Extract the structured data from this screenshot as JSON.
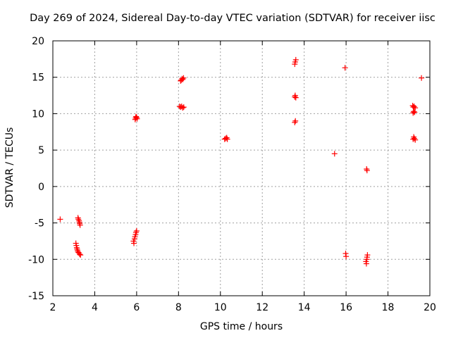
{
  "chart_data": {
    "type": "scatter",
    "title": "Day 269 of 2024, Sidereal Day-to-day VTEC variation (SDTVAR) for receiver iisc",
    "xlabel": "GPS time / hours",
    "ylabel": "SDTVAR / TECUs",
    "xlim": [
      2,
      20
    ],
    "ylim": [
      -15,
      20
    ],
    "xticks": [
      2,
      4,
      6,
      8,
      10,
      12,
      14,
      16,
      18,
      20
    ],
    "yticks": [
      -15,
      -10,
      -5,
      0,
      5,
      10,
      15,
      20
    ],
    "grid": true,
    "marker": "plus",
    "series": [
      {
        "name": "SDTVAR",
        "color": "#ff0000",
        "points": [
          [
            2.35,
            -4.5
          ],
          [
            3.2,
            -4.3
          ],
          [
            3.22,
            -4.5
          ],
          [
            3.25,
            -4.7
          ],
          [
            3.27,
            -4.9
          ],
          [
            3.28,
            -5.1
          ],
          [
            3.3,
            -5.3
          ],
          [
            3.1,
            -7.8
          ],
          [
            3.12,
            -8.1
          ],
          [
            3.14,
            -8.4
          ],
          [
            3.16,
            -8.6
          ],
          [
            3.18,
            -8.8
          ],
          [
            3.2,
            -9.0
          ],
          [
            3.24,
            -9.1
          ],
          [
            3.28,
            -9.3
          ],
          [
            3.32,
            -9.4
          ],
          [
            5.85,
            -7.5
          ],
          [
            5.87,
            -7.8
          ],
          [
            5.9,
            -7.2
          ],
          [
            5.92,
            -6.9
          ],
          [
            5.95,
            -6.6
          ],
          [
            5.97,
            -6.3
          ],
          [
            6.0,
            -6.1
          ],
          [
            5.93,
            9.2
          ],
          [
            5.95,
            9.4
          ],
          [
            5.97,
            9.6
          ],
          [
            6.0,
            9.5
          ],
          [
            6.02,
            9.3
          ],
          [
            8.05,
            11.0
          ],
          [
            8.1,
            10.9
          ],
          [
            8.15,
            11.0
          ],
          [
            8.2,
            10.8
          ],
          [
            8.25,
            10.9
          ],
          [
            8.1,
            14.5
          ],
          [
            8.13,
            14.6
          ],
          [
            8.17,
            14.8
          ],
          [
            8.2,
            14.7
          ],
          [
            8.24,
            14.9
          ],
          [
            10.2,
            6.5
          ],
          [
            10.25,
            6.6
          ],
          [
            10.3,
            6.7
          ],
          [
            10.33,
            6.5
          ],
          [
            13.55,
            8.8
          ],
          [
            13.58,
            9.0
          ],
          [
            13.55,
            12.3
          ],
          [
            13.57,
            12.5
          ],
          [
            13.6,
            12.2
          ],
          [
            13.55,
            16.8
          ],
          [
            13.57,
            17.1
          ],
          [
            13.6,
            17.4
          ],
          [
            15.45,
            4.5
          ],
          [
            15.95,
            16.3
          ],
          [
            15.98,
            -9.2
          ],
          [
            16.0,
            -9.6
          ],
          [
            16.95,
            -10.3
          ],
          [
            16.97,
            -10.6
          ],
          [
            16.99,
            -10.0
          ],
          [
            17.0,
            -9.7
          ],
          [
            17.02,
            -9.4
          ],
          [
            16.98,
            2.4
          ],
          [
            17.0,
            2.2
          ],
          [
            19.2,
            6.5
          ],
          [
            19.23,
            6.8
          ],
          [
            19.26,
            6.6
          ],
          [
            19.3,
            6.4
          ],
          [
            19.2,
            10.1
          ],
          [
            19.23,
            10.3
          ],
          [
            19.27,
            10.2
          ],
          [
            19.18,
            11.1
          ],
          [
            19.21,
            10.9
          ],
          [
            19.25,
            11.0
          ],
          [
            19.3,
            10.8
          ],
          [
            19.6,
            14.9
          ]
        ]
      }
    ]
  }
}
